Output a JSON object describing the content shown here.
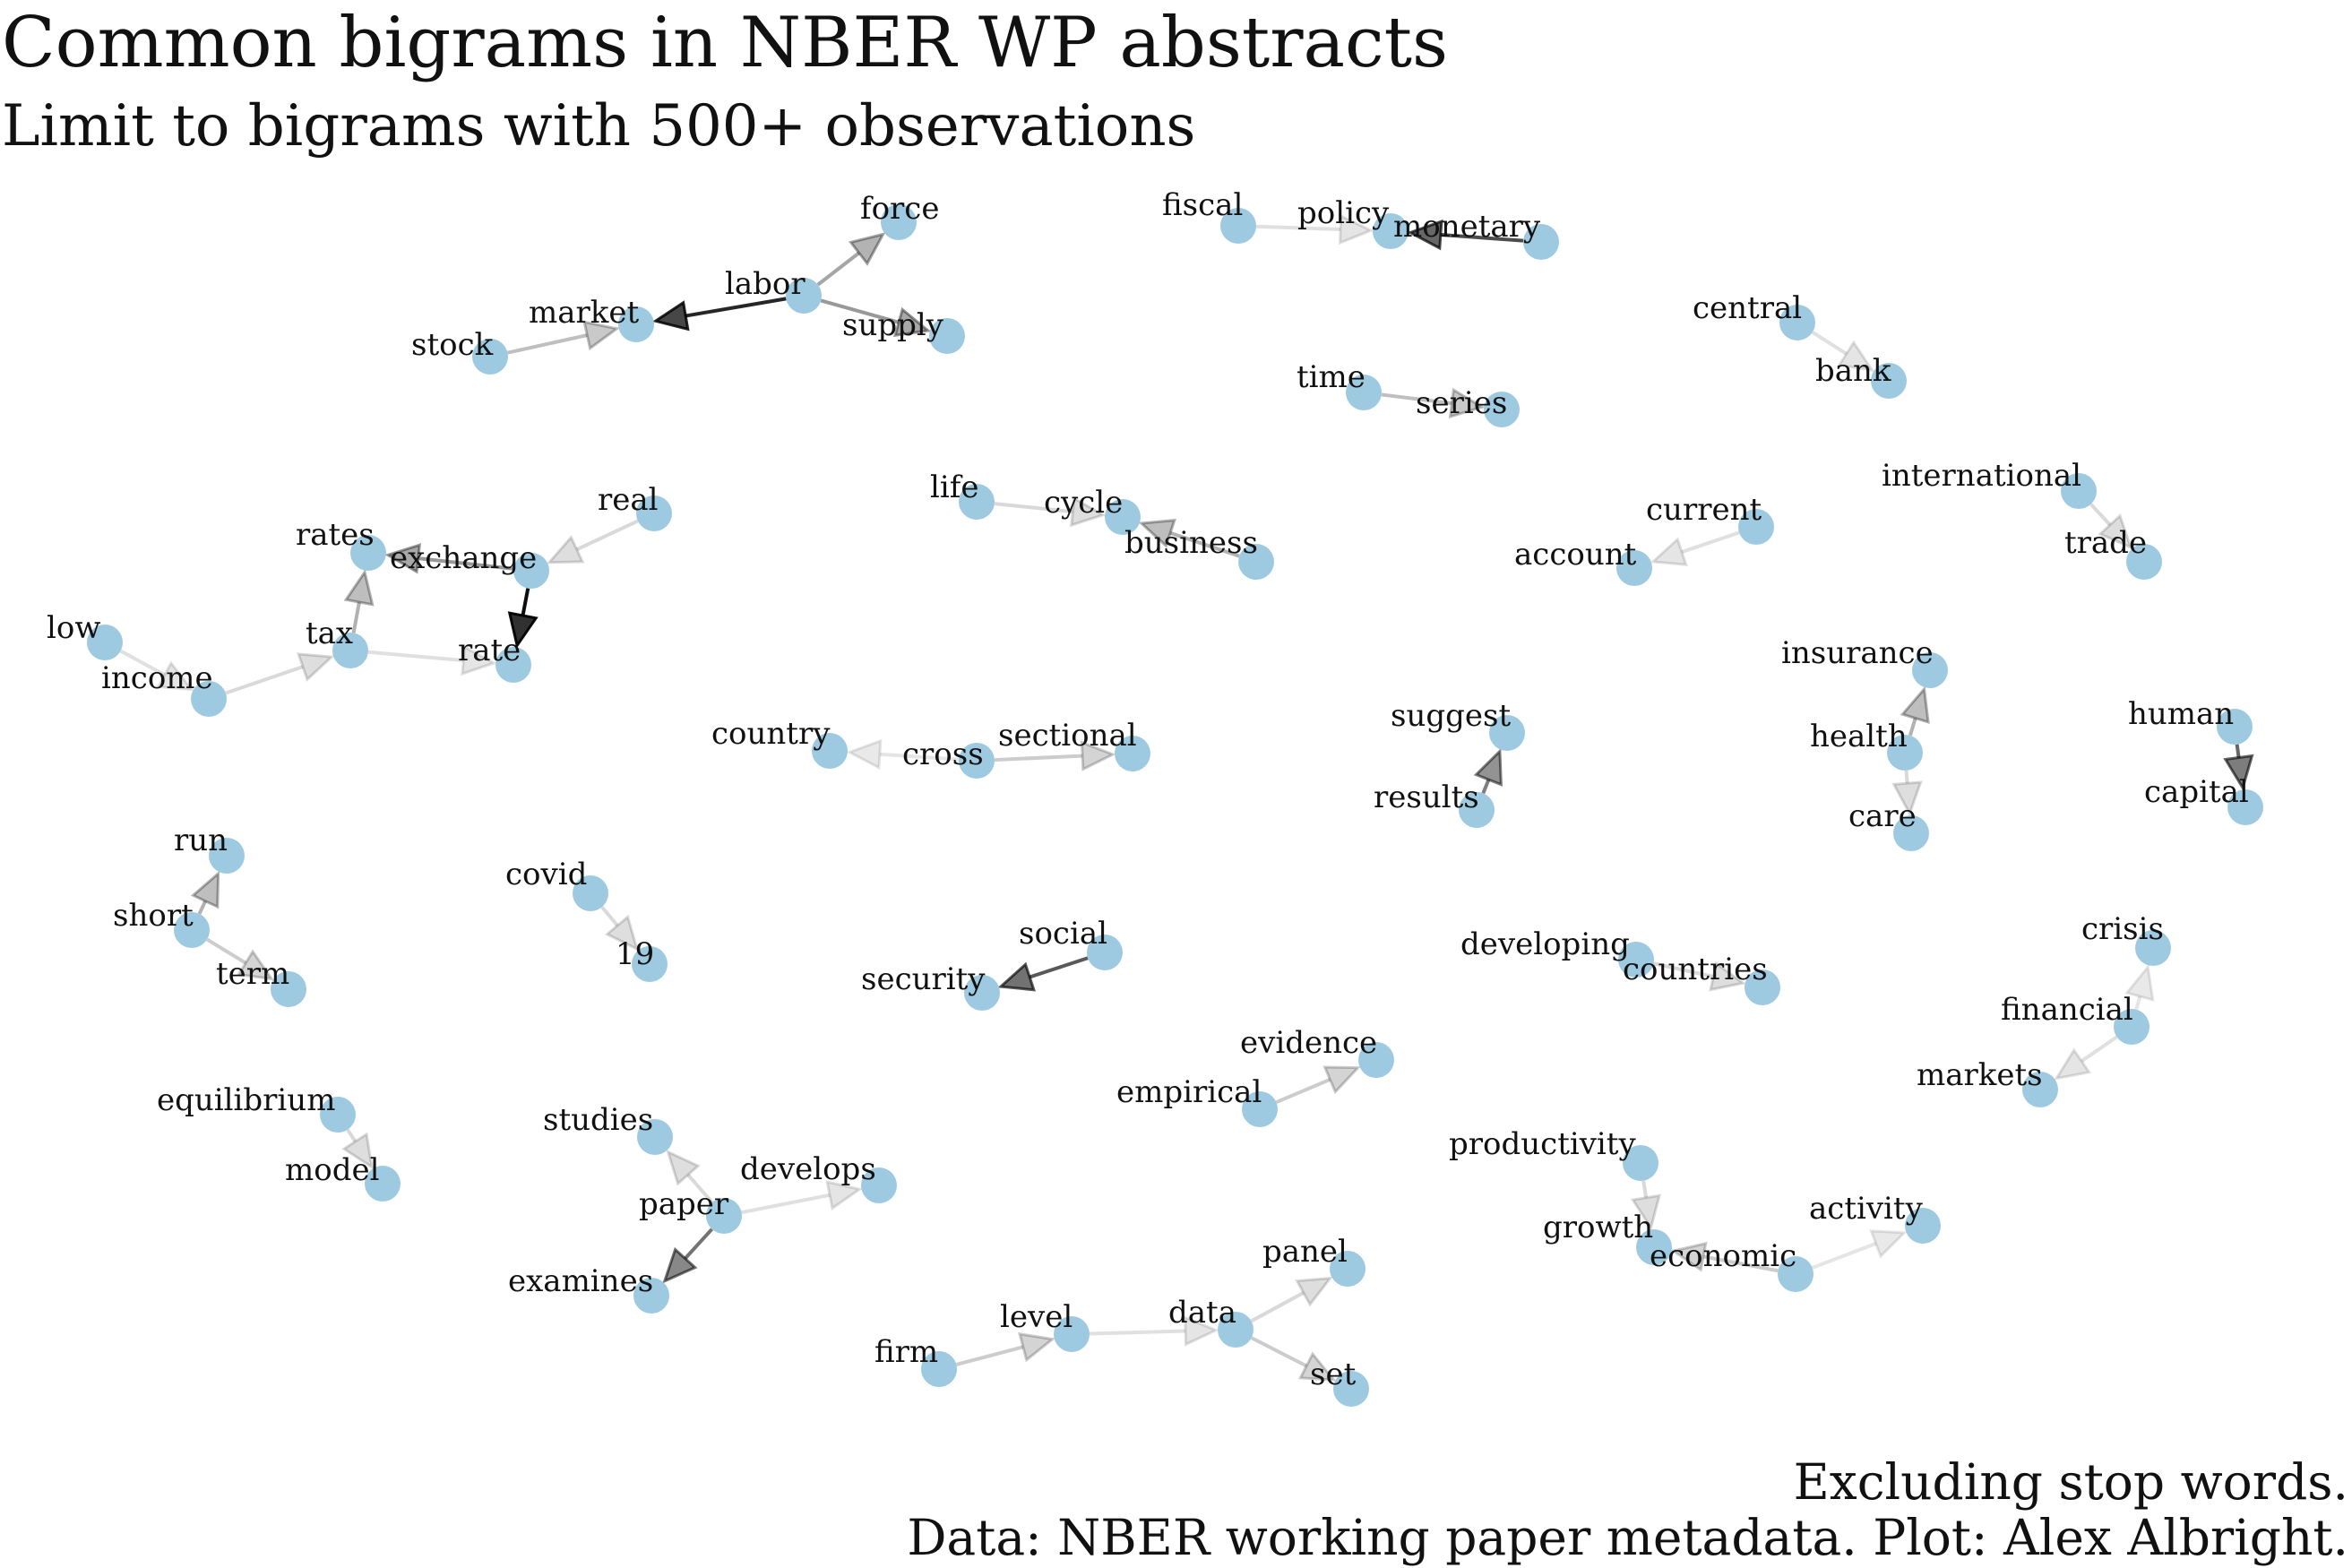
{
  "title": "Common bigrams in NBER WP abstracts",
  "subtitle": "Limit to bigrams with 500+ observations",
  "caption_line1": "Excluding stop words.",
  "caption_line2": "Data: NBER working paper metadata. Plot: Alex Albright.",
  "colors": {
    "node": "#9ecae1",
    "edge": "#000000"
  },
  "nodes": [
    {
      "id": "force",
      "label": "force"
    },
    {
      "id": "labor",
      "label": "labor"
    },
    {
      "id": "market",
      "label": "market"
    },
    {
      "id": "supply",
      "label": "supply"
    },
    {
      "id": "stock",
      "label": "stock"
    },
    {
      "id": "fiscal",
      "label": "fiscal"
    },
    {
      "id": "policy",
      "label": "policy"
    },
    {
      "id": "monetary",
      "label": "monetary"
    },
    {
      "id": "central",
      "label": "central"
    },
    {
      "id": "bank",
      "label": "bank"
    },
    {
      "id": "time",
      "label": "time"
    },
    {
      "id": "series",
      "label": "series"
    },
    {
      "id": "life",
      "label": "life"
    },
    {
      "id": "cycle",
      "label": "cycle"
    },
    {
      "id": "business",
      "label": "business"
    },
    {
      "id": "international",
      "label": "international"
    },
    {
      "id": "trade",
      "label": "trade"
    },
    {
      "id": "current",
      "label": "current"
    },
    {
      "id": "account",
      "label": "account"
    },
    {
      "id": "real",
      "label": "real"
    },
    {
      "id": "exchange",
      "label": "exchange"
    },
    {
      "id": "rates",
      "label": "rates"
    },
    {
      "id": "rate",
      "label": "rate"
    },
    {
      "id": "tax",
      "label": "tax"
    },
    {
      "id": "low",
      "label": "low"
    },
    {
      "id": "income",
      "label": "income"
    },
    {
      "id": "insurance",
      "label": "insurance"
    },
    {
      "id": "health",
      "label": "health"
    },
    {
      "id": "care",
      "label": "care"
    },
    {
      "id": "suggest",
      "label": "suggest"
    },
    {
      "id": "results",
      "label": "results"
    },
    {
      "id": "human",
      "label": "human"
    },
    {
      "id": "capital",
      "label": "capital"
    },
    {
      "id": "country",
      "label": "country"
    },
    {
      "id": "cross",
      "label": "cross"
    },
    {
      "id": "sectional",
      "label": "sectional"
    },
    {
      "id": "run",
      "label": "run"
    },
    {
      "id": "short",
      "label": "short"
    },
    {
      "id": "term",
      "label": "term"
    },
    {
      "id": "covid",
      "label": "covid"
    },
    {
      "id": "n19",
      "label": "19"
    },
    {
      "id": "social",
      "label": "social"
    },
    {
      "id": "security",
      "label": "security"
    },
    {
      "id": "developing",
      "label": "developing"
    },
    {
      "id": "countries",
      "label": "countries"
    },
    {
      "id": "crisis",
      "label": "crisis"
    },
    {
      "id": "financial",
      "label": "financial"
    },
    {
      "id": "markets",
      "label": "markets"
    },
    {
      "id": "equilibrium",
      "label": "equilibrium"
    },
    {
      "id": "model",
      "label": "model"
    },
    {
      "id": "evidence",
      "label": "evidence"
    },
    {
      "id": "empirical",
      "label": "empirical"
    },
    {
      "id": "studies",
      "label": "studies"
    },
    {
      "id": "develops",
      "label": "develops"
    },
    {
      "id": "paper",
      "label": "paper"
    },
    {
      "id": "examines",
      "label": "examines"
    },
    {
      "id": "productivity",
      "label": "productivity"
    },
    {
      "id": "growth",
      "label": "growth"
    },
    {
      "id": "economic",
      "label": "economic"
    },
    {
      "id": "activity",
      "label": "activity"
    },
    {
      "id": "panel",
      "label": "panel"
    },
    {
      "id": "level",
      "label": "level"
    },
    {
      "id": "data",
      "label": "data"
    },
    {
      "id": "firm",
      "label": "firm"
    },
    {
      "id": "set",
      "label": "set"
    }
  ],
  "edges": [
    {
      "from": "labor",
      "to": "market",
      "strength": 0.85
    },
    {
      "from": "labor",
      "to": "force",
      "strength": 0.35
    },
    {
      "from": "labor",
      "to": "supply",
      "strength": 0.4
    },
    {
      "from": "stock",
      "to": "market",
      "strength": 0.25
    },
    {
      "from": "fiscal",
      "to": "policy",
      "strength": 0.12
    },
    {
      "from": "monetary",
      "to": "policy",
      "strength": 0.7
    },
    {
      "from": "central",
      "to": "bank",
      "strength": 0.12
    },
    {
      "from": "time",
      "to": "series",
      "strength": 0.25
    },
    {
      "from": "life",
      "to": "cycle",
      "strength": 0.15
    },
    {
      "from": "business",
      "to": "cycle",
      "strength": 0.3
    },
    {
      "from": "international",
      "to": "trade",
      "strength": 0.15
    },
    {
      "from": "current",
      "to": "account",
      "strength": 0.12
    },
    {
      "from": "real",
      "to": "exchange",
      "strength": 0.15
    },
    {
      "from": "exchange",
      "to": "rates",
      "strength": 0.4
    },
    {
      "from": "exchange",
      "to": "rate",
      "strength": 0.95
    },
    {
      "from": "tax",
      "to": "rates",
      "strength": 0.3
    },
    {
      "from": "tax",
      "to": "rate",
      "strength": 0.12
    },
    {
      "from": "low",
      "to": "income",
      "strength": 0.12
    },
    {
      "from": "income",
      "to": "tax",
      "strength": 0.15
    },
    {
      "from": "health",
      "to": "insurance",
      "strength": 0.3
    },
    {
      "from": "health",
      "to": "care",
      "strength": 0.15
    },
    {
      "from": "results",
      "to": "suggest",
      "strength": 0.5
    },
    {
      "from": "human",
      "to": "capital",
      "strength": 0.6
    },
    {
      "from": "cross",
      "to": "country",
      "strength": 0.1
    },
    {
      "from": "cross",
      "to": "sectional",
      "strength": 0.2
    },
    {
      "from": "short",
      "to": "run",
      "strength": 0.3
    },
    {
      "from": "short",
      "to": "term",
      "strength": 0.2
    },
    {
      "from": "covid",
      "to": "n19",
      "strength": 0.15
    },
    {
      "from": "social",
      "to": "security",
      "strength": 0.65
    },
    {
      "from": "developing",
      "to": "countries",
      "strength": 0.15
    },
    {
      "from": "financial",
      "to": "crisis",
      "strength": 0.1
    },
    {
      "from": "financial",
      "to": "markets",
      "strength": 0.12
    },
    {
      "from": "equilibrium",
      "to": "model",
      "strength": 0.15
    },
    {
      "from": "empirical",
      "to": "evidence",
      "strength": 0.2
    },
    {
      "from": "paper",
      "to": "studies",
      "strength": 0.15
    },
    {
      "from": "paper",
      "to": "develops",
      "strength": 0.12
    },
    {
      "from": "paper",
      "to": "examines",
      "strength": 0.55
    },
    {
      "from": "productivity",
      "to": "growth",
      "strength": 0.15
    },
    {
      "from": "economic",
      "to": "growth",
      "strength": 0.2
    },
    {
      "from": "economic",
      "to": "activity",
      "strength": 0.1
    },
    {
      "from": "data",
      "to": "panel",
      "strength": 0.15
    },
    {
      "from": "level",
      "to": "data",
      "strength": 0.12
    },
    {
      "from": "firm",
      "to": "level",
      "strength": 0.2
    },
    {
      "from": "data",
      "to": "set",
      "strength": 0.2
    }
  ]
}
